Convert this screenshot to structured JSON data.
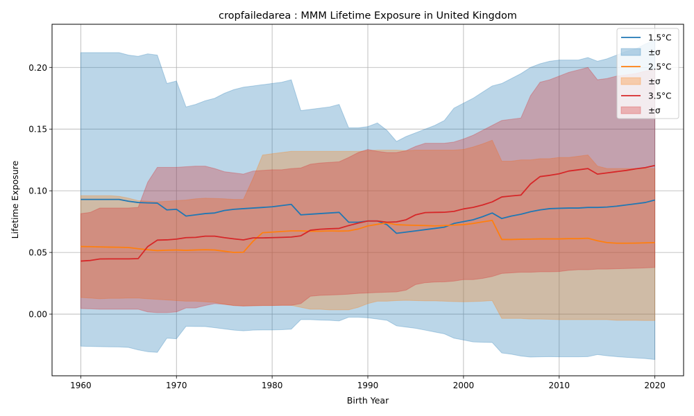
{
  "chart_data": {
    "type": "line",
    "title": "cropfailedarea : MMM Lifetime Exposure in United Kingdom",
    "xlabel": "Birth Year",
    "ylabel": "Lifetime Exposure",
    "xlim": [
      1957,
      2023
    ],
    "ylim": [
      -0.05,
      0.235
    ],
    "xticks": [
      1960,
      1970,
      1980,
      1990,
      2000,
      2010,
      2020
    ],
    "yticks": [
      0.0,
      0.05,
      0.1,
      0.15,
      0.2
    ],
    "xtick_labels": [
      "1960",
      "1970",
      "1980",
      "1990",
      "2000",
      "2010",
      "2020"
    ],
    "ytick_labels": [
      "0.00",
      "0.05",
      "0.10",
      "0.15",
      "0.20"
    ],
    "grid": true,
    "legend_position": "top-right",
    "x": [
      1960,
      1961,
      1962,
      1963,
      1964,
      1965,
      1966,
      1967,
      1968,
      1969,
      1970,
      1971,
      1972,
      1973,
      1974,
      1975,
      1976,
      1977,
      1978,
      1979,
      1980,
      1981,
      1982,
      1983,
      1984,
      1985,
      1986,
      1987,
      1988,
      1989,
      1990,
      1991,
      1992,
      1993,
      1994,
      1995,
      1996,
      1997,
      1998,
      1999,
      2000,
      2001,
      2002,
      2003,
      2004,
      2005,
      2006,
      2007,
      2008,
      2009,
      2010,
      2011,
      2012,
      2013,
      2014,
      2015,
      2016,
      2017,
      2018,
      2019,
      2020
    ],
    "series": [
      {
        "name": "1.5°C",
        "band_label": "±σ",
        "color": "#1f77b4",
        "values": [
          0.093,
          0.093,
          0.093,
          0.093,
          0.093,
          0.0915,
          0.0905,
          0.0902,
          0.09,
          0.0845,
          0.085,
          0.0795,
          0.0805,
          0.0815,
          0.082,
          0.084,
          0.085,
          0.0855,
          0.086,
          0.0865,
          0.087,
          0.088,
          0.089,
          0.0805,
          0.081,
          0.0815,
          0.082,
          0.0825,
          0.0745,
          0.0745,
          0.0755,
          0.0755,
          0.0725,
          0.0655,
          0.0665,
          0.0675,
          0.0685,
          0.0695,
          0.0705,
          0.0735,
          0.075,
          0.0765,
          0.079,
          0.082,
          0.0775,
          0.0795,
          0.081,
          0.083,
          0.0845,
          0.0855,
          0.0858,
          0.086,
          0.086,
          0.0865,
          0.0865,
          0.0868,
          0.0875,
          0.0885,
          0.0895,
          0.0905,
          0.0925
        ],
        "upper": [
          0.212,
          0.212,
          0.212,
          0.212,
          0.212,
          0.21,
          0.209,
          0.211,
          0.21,
          0.187,
          0.189,
          0.168,
          0.17,
          0.173,
          0.175,
          0.179,
          0.182,
          0.184,
          0.185,
          0.186,
          0.187,
          0.188,
          0.19,
          0.165,
          0.166,
          0.167,
          0.168,
          0.17,
          0.151,
          0.151,
          0.152,
          0.155,
          0.149,
          0.14,
          0.144,
          0.147,
          0.15,
          0.153,
          0.157,
          0.167,
          0.171,
          0.175,
          0.18,
          0.185,
          0.187,
          0.191,
          0.195,
          0.2,
          0.203,
          0.205,
          0.206,
          0.206,
          0.206,
          0.208,
          0.205,
          0.207,
          0.21,
          0.213,
          0.215,
          0.219,
          0.222
        ],
        "lower": [
          -0.026,
          -0.0262,
          -0.0264,
          -0.0265,
          -0.0266,
          -0.027,
          -0.029,
          -0.0305,
          -0.031,
          -0.0195,
          -0.02,
          -0.0099,
          -0.01,
          -0.0101,
          -0.011,
          -0.012,
          -0.013,
          -0.0135,
          -0.013,
          -0.0128,
          -0.0128,
          -0.0126,
          -0.0122,
          -0.0045,
          -0.0045,
          -0.0048,
          -0.005,
          -0.0055,
          -0.0025,
          -0.0025,
          -0.003,
          -0.004,
          -0.005,
          -0.0095,
          -0.0105,
          -0.0115,
          -0.013,
          -0.0145,
          -0.016,
          -0.0195,
          -0.021,
          -0.0225,
          -0.0228,
          -0.023,
          -0.0315,
          -0.0325,
          -0.034,
          -0.0348,
          -0.0346,
          -0.0345,
          -0.0346,
          -0.0346,
          -0.0346,
          -0.0345,
          -0.0328,
          -0.0338,
          -0.0345,
          -0.035,
          -0.0355,
          -0.036,
          -0.0368
        ]
      },
      {
        "name": "2.5°C",
        "band_label": "±σ",
        "color": "#ff7f0e",
        "values": [
          0.0548,
          0.0547,
          0.0545,
          0.0543,
          0.0542,
          0.054,
          0.053,
          0.0522,
          0.0515,
          0.0518,
          0.052,
          0.0517,
          0.052,
          0.0522,
          0.052,
          0.051,
          0.05,
          0.0502,
          0.059,
          0.066,
          0.0665,
          0.067,
          0.0675,
          0.0675,
          0.0672,
          0.0672,
          0.0675,
          0.0673,
          0.0675,
          0.069,
          0.0715,
          0.0728,
          0.074,
          0.0725,
          0.0722,
          0.072,
          0.0718,
          0.0715,
          0.0718,
          0.0722,
          0.0725,
          0.0735,
          0.0748,
          0.076,
          0.0605,
          0.0605,
          0.0607,
          0.0608,
          0.061,
          0.061,
          0.061,
          0.0612,
          0.0612,
          0.0615,
          0.0595,
          0.058,
          0.0575,
          0.0575,
          0.0576,
          0.0578,
          0.058
        ],
        "upper": [
          0.096,
          0.096,
          0.096,
          0.096,
          0.0955,
          0.094,
          0.092,
          0.0915,
          0.091,
          0.0915,
          0.092,
          0.0925,
          0.0935,
          0.094,
          0.0938,
          0.0935,
          0.093,
          0.093,
          0.11,
          0.129,
          0.13,
          0.131,
          0.132,
          0.132,
          0.132,
          0.132,
          0.132,
          0.132,
          0.132,
          0.132,
          0.1325,
          0.133,
          0.133,
          0.133,
          0.1325,
          0.133,
          0.133,
          0.133,
          0.133,
          0.133,
          0.1335,
          0.1355,
          0.138,
          0.141,
          0.124,
          0.124,
          0.125,
          0.125,
          0.126,
          0.126,
          0.127,
          0.127,
          0.128,
          0.129,
          0.12,
          0.118,
          0.118,
          0.118,
          0.118,
          0.118,
          0.118
        ],
        "lower": [
          0.0135,
          0.013,
          0.0125,
          0.0128,
          0.0128,
          0.013,
          0.013,
          0.0125,
          0.012,
          0.0115,
          0.011,
          0.0105,
          0.0105,
          0.01,
          0.0095,
          0.008,
          0.007,
          0.0068,
          0.0068,
          0.007,
          0.007,
          0.0072,
          0.0072,
          0.0055,
          0.004,
          0.004,
          0.0035,
          0.0035,
          0.0035,
          0.0055,
          0.0085,
          0.0105,
          0.0105,
          0.011,
          0.0112,
          0.011,
          0.0108,
          0.0108,
          0.0105,
          0.0102,
          0.01,
          0.0102,
          0.0105,
          0.011,
          -0.0035,
          -0.0035,
          -0.0035,
          -0.004,
          -0.004,
          -0.0042,
          -0.0045,
          -0.0045,
          -0.0045,
          -0.0045,
          -0.0045,
          -0.0045,
          -0.005,
          -0.005,
          -0.005,
          -0.0052,
          -0.0052
        ]
      },
      {
        "name": "3.5°C",
        "band_label": "±σ",
        "color": "#d62728",
        "values": [
          0.043,
          0.0435,
          0.0447,
          0.0448,
          0.0448,
          0.0448,
          0.045,
          0.0548,
          0.06,
          0.0602,
          0.0608,
          0.062,
          0.0622,
          0.0632,
          0.0632,
          0.062,
          0.061,
          0.0602,
          0.0618,
          0.0618,
          0.062,
          0.0622,
          0.0625,
          0.0635,
          0.068,
          0.0688,
          0.0692,
          0.0695,
          0.0718,
          0.0738,
          0.0755,
          0.0755,
          0.0745,
          0.0748,
          0.0765,
          0.0805,
          0.0823,
          0.0825,
          0.0826,
          0.0833,
          0.0853,
          0.0865,
          0.0885,
          0.091,
          0.095,
          0.0958,
          0.0965,
          0.1055,
          0.1115,
          0.1125,
          0.1138,
          0.116,
          0.117,
          0.118,
          0.1135,
          0.1145,
          0.1155,
          0.1165,
          0.1178,
          0.1188,
          0.1205
        ],
        "upper": [
          0.0815,
          0.0825,
          0.086,
          0.086,
          0.086,
          0.086,
          0.0865,
          0.107,
          0.119,
          0.119,
          0.119,
          0.1195,
          0.12,
          0.12,
          0.118,
          0.1155,
          0.1145,
          0.1135,
          0.116,
          0.1165,
          0.117,
          0.117,
          0.118,
          0.1185,
          0.1215,
          0.1225,
          0.123,
          0.1235,
          0.127,
          0.131,
          0.1335,
          0.132,
          0.131,
          0.131,
          0.1325,
          0.136,
          0.1385,
          0.1385,
          0.1385,
          0.1395,
          0.142,
          0.145,
          0.149,
          0.153,
          0.157,
          0.158,
          0.159,
          0.177,
          0.188,
          0.19,
          0.193,
          0.196,
          0.198,
          0.2,
          0.19,
          0.191,
          0.193,
          0.194,
          0.195,
          0.197,
          0.198
        ],
        "lower": [
          0.0045,
          0.0043,
          0.004,
          0.004,
          0.004,
          0.004,
          0.004,
          0.0018,
          0.0012,
          0.0012,
          0.0018,
          0.005,
          0.005,
          0.007,
          0.0085,
          0.008,
          0.007,
          0.0065,
          0.0068,
          0.007,
          0.007,
          0.0071,
          0.0071,
          0.0085,
          0.0145,
          0.0152,
          0.0155,
          0.0158,
          0.0162,
          0.0168,
          0.0172,
          0.0175,
          0.0178,
          0.018,
          0.0195,
          0.024,
          0.0255,
          0.026,
          0.0262,
          0.0268,
          0.028,
          0.028,
          0.029,
          0.0305,
          0.033,
          0.0335,
          0.034,
          0.034,
          0.0343,
          0.0343,
          0.0345,
          0.0355,
          0.036,
          0.036,
          0.0365,
          0.0365,
          0.0368,
          0.037,
          0.0372,
          0.0375,
          0.0378
        ]
      }
    ]
  }
}
